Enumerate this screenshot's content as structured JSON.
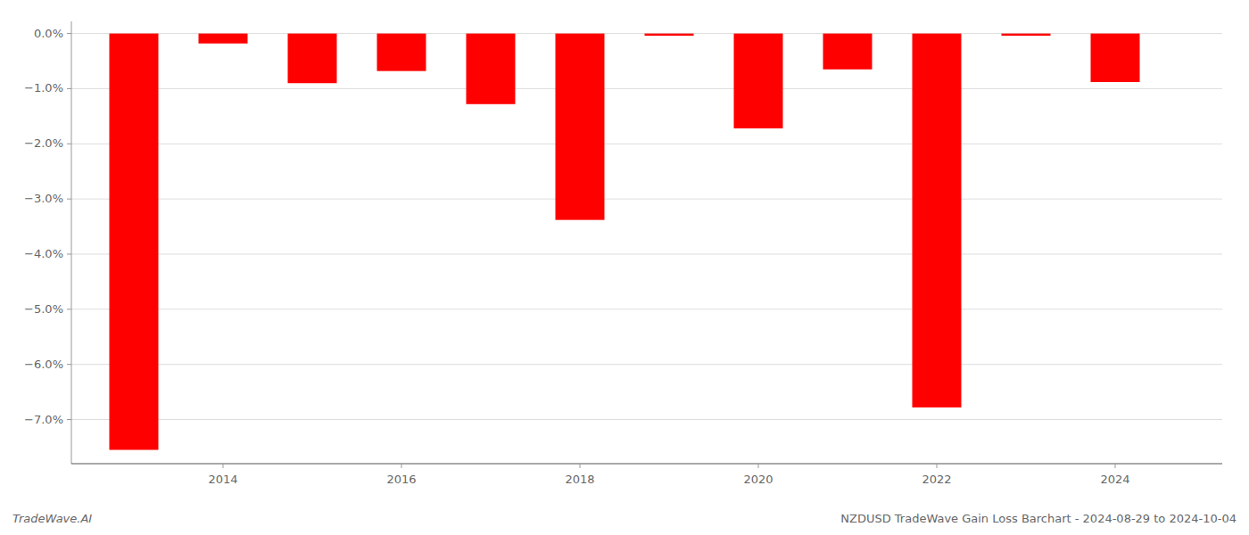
{
  "chart_data": {
    "type": "bar",
    "title": "NZDUSD TradeWave Gain Loss Barchart - 2024-08-29 to 2024-10-04",
    "annotations": [
      "TradeWave.AI"
    ],
    "x": [
      2013,
      2014,
      2015,
      2016,
      2017,
      2018,
      2019,
      2020,
      2021,
      2022,
      2023,
      2024
    ],
    "values": [
      -7.55,
      -0.18,
      -0.9,
      -0.68,
      -1.28,
      -3.38,
      -0.04,
      -1.72,
      -0.65,
      -6.78,
      -0.04,
      -0.88
    ],
    "color": "#FF0000",
    "xlim": [
      2012.3,
      2025.2
    ],
    "xticks": [
      2014,
      2016,
      2018,
      2020,
      2022,
      2024
    ],
    "ylim": [
      -7.8,
      0.22
    ],
    "yticks": [
      {
        "value": 0.0,
        "label": "0.0%"
      },
      {
        "value": -1.0,
        "label": "−1.0%"
      },
      {
        "value": -2.0,
        "label": "−2.0%"
      },
      {
        "value": -3.0,
        "label": "−3.0%"
      },
      {
        "value": -4.0,
        "label": "−4.0%"
      },
      {
        "value": -5.0,
        "label": "−5.0%"
      },
      {
        "value": -6.0,
        "label": "−6.0%"
      },
      {
        "value": -7.0,
        "label": "−7.0%"
      }
    ],
    "grid": true
  }
}
